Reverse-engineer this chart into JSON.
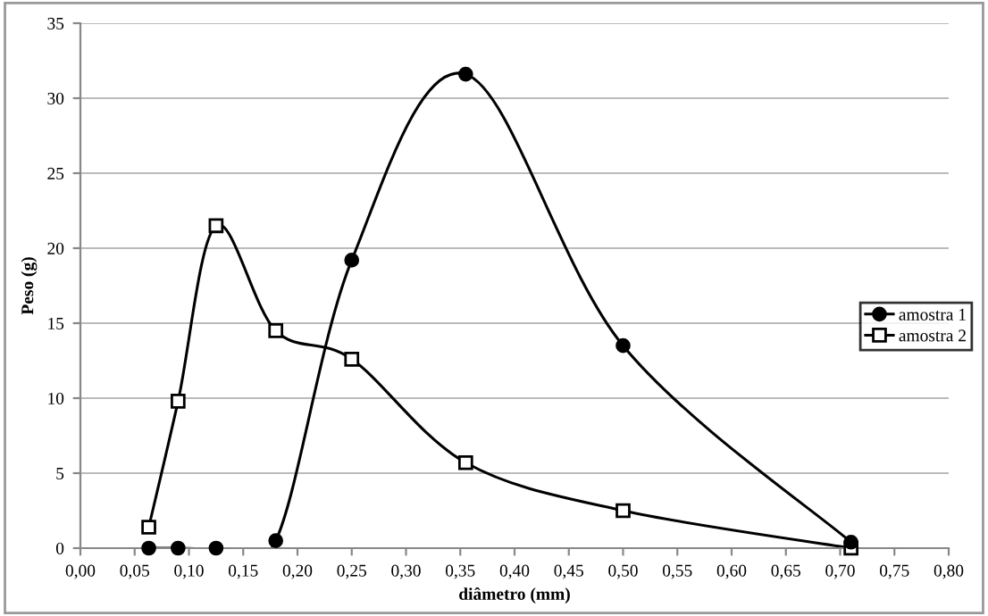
{
  "chart_data": {
    "type": "line",
    "xlabel": "diâmetro (mm)",
    "ylabel": "Peso (g)",
    "xlim": [
      0,
      0.8
    ],
    "ylim": [
      0,
      35
    ],
    "xticks": [
      {
        "value": 0,
        "label": "0,00"
      },
      {
        "value": 0.05,
        "label": "0,05"
      },
      {
        "value": 0.1,
        "label": "0,10"
      },
      {
        "value": 0.15,
        "label": "0,15"
      },
      {
        "value": 0.2,
        "label": "0,20"
      },
      {
        "value": 0.25,
        "label": "0,25"
      },
      {
        "value": 0.3,
        "label": "0,30"
      },
      {
        "value": 0.35,
        "label": "0,35"
      },
      {
        "value": 0.4,
        "label": "0,40"
      },
      {
        "value": 0.45,
        "label": "0,45"
      },
      {
        "value": 0.5,
        "label": "0,50"
      },
      {
        "value": 0.55,
        "label": "0,55"
      },
      {
        "value": 0.6,
        "label": "0,60"
      },
      {
        "value": 0.65,
        "label": "0,65"
      },
      {
        "value": 0.7,
        "label": "0,70"
      },
      {
        "value": 0.75,
        "label": "0,75"
      },
      {
        "value": 0.8,
        "label": "0,80"
      }
    ],
    "yticks": [
      0,
      5,
      10,
      15,
      20,
      25,
      30,
      35
    ],
    "grid": "y",
    "legend": "right",
    "series": [
      {
        "name": "amostra 1",
        "color": "#000000",
        "marker": "circle",
        "x": [
          0.063,
          0.09,
          0.125,
          0.18,
          0.25,
          0.355,
          0.5,
          0.71
        ],
        "values": [
          0,
          0,
          0,
          0.5,
          19.2,
          31.6,
          13.5,
          0.4
        ]
      },
      {
        "name": "amostra 2",
        "color": "#000000",
        "marker": "square",
        "x": [
          0.063,
          0.09,
          0.125,
          0.18,
          0.25,
          0.355,
          0.5,
          0.71
        ],
        "values": [
          1.4,
          9.8,
          21.5,
          14.5,
          12.6,
          5.7,
          2.5,
          0
        ]
      }
    ]
  }
}
